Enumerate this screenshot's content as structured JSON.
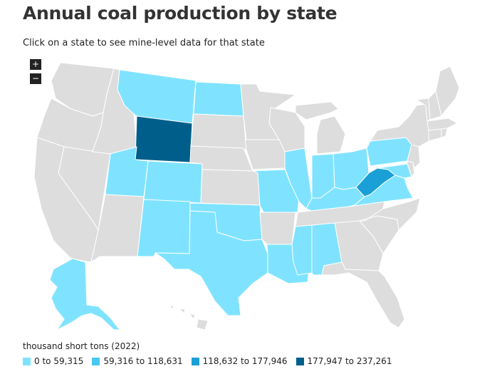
{
  "title": "Annual coal production by state",
  "subtitle": "Click on a state to see mine-level data for that state",
  "zoom": {
    "in_label": "+",
    "out_label": "−"
  },
  "legend": {
    "title": "thousand short tons (2022)",
    "items": [
      {
        "label": "0 to 59,315",
        "color": "#7fe3ff"
      },
      {
        "label": "59,316 to 118,631",
        "color": "#48c8f0"
      },
      {
        "label": "118,632 to 177,946",
        "color": "#1aa0d6"
      },
      {
        "label": "177,947 to 237,261",
        "color": "#005f8a"
      }
    ]
  },
  "colors": {
    "no_data": "#dddddd",
    "bin1": "#7fe3ff",
    "bin2": "#48c8f0",
    "bin3": "#1aa0d6",
    "bin4": "#005f8a"
  },
  "states": [
    {
      "id": "WA",
      "fill": "no_data"
    },
    {
      "id": "OR",
      "fill": "no_data"
    },
    {
      "id": "CA",
      "fill": "no_data"
    },
    {
      "id": "NV",
      "fill": "no_data"
    },
    {
      "id": "ID",
      "fill": "no_data"
    },
    {
      "id": "MT",
      "fill": "bin1"
    },
    {
      "id": "WY",
      "fill": "bin4"
    },
    {
      "id": "UT",
      "fill": "bin1"
    },
    {
      "id": "AZ",
      "fill": "no_data"
    },
    {
      "id": "CO",
      "fill": "bin1"
    },
    {
      "id": "NM",
      "fill": "bin1"
    },
    {
      "id": "ND",
      "fill": "bin1"
    },
    {
      "id": "SD",
      "fill": "no_data"
    },
    {
      "id": "NE",
      "fill": "no_data"
    },
    {
      "id": "KS",
      "fill": "no_data"
    },
    {
      "id": "OK",
      "fill": "bin1"
    },
    {
      "id": "TX",
      "fill": "bin1"
    },
    {
      "id": "MN",
      "fill": "no_data"
    },
    {
      "id": "IA",
      "fill": "no_data"
    },
    {
      "id": "MO",
      "fill": "bin1"
    },
    {
      "id": "AR",
      "fill": "no_data"
    },
    {
      "id": "LA",
      "fill": "bin1"
    },
    {
      "id": "WI",
      "fill": "no_data"
    },
    {
      "id": "IL",
      "fill": "bin1"
    },
    {
      "id": "MI",
      "fill": "no_data"
    },
    {
      "id": "IN",
      "fill": "bin1"
    },
    {
      "id": "OH",
      "fill": "bin1"
    },
    {
      "id": "KY",
      "fill": "bin1"
    },
    {
      "id": "TN",
      "fill": "no_data"
    },
    {
      "id": "MS",
      "fill": "bin1"
    },
    {
      "id": "AL",
      "fill": "bin1"
    },
    {
      "id": "GA",
      "fill": "no_data"
    },
    {
      "id": "FL",
      "fill": "no_data"
    },
    {
      "id": "SC",
      "fill": "no_data"
    },
    {
      "id": "NC",
      "fill": "no_data"
    },
    {
      "id": "VA",
      "fill": "bin1"
    },
    {
      "id": "WV",
      "fill": "bin3"
    },
    {
      "id": "PA",
      "fill": "bin1"
    },
    {
      "id": "MD",
      "fill": "bin1"
    },
    {
      "id": "DE",
      "fill": "no_data"
    },
    {
      "id": "NJ",
      "fill": "no_data"
    },
    {
      "id": "NY",
      "fill": "no_data"
    },
    {
      "id": "CT",
      "fill": "no_data"
    },
    {
      "id": "RI",
      "fill": "no_data"
    },
    {
      "id": "MA",
      "fill": "no_data"
    },
    {
      "id": "VT",
      "fill": "no_data"
    },
    {
      "id": "NH",
      "fill": "no_data"
    },
    {
      "id": "ME",
      "fill": "no_data"
    },
    {
      "id": "AK",
      "fill": "bin1"
    },
    {
      "id": "HI",
      "fill": "no_data"
    }
  ]
}
